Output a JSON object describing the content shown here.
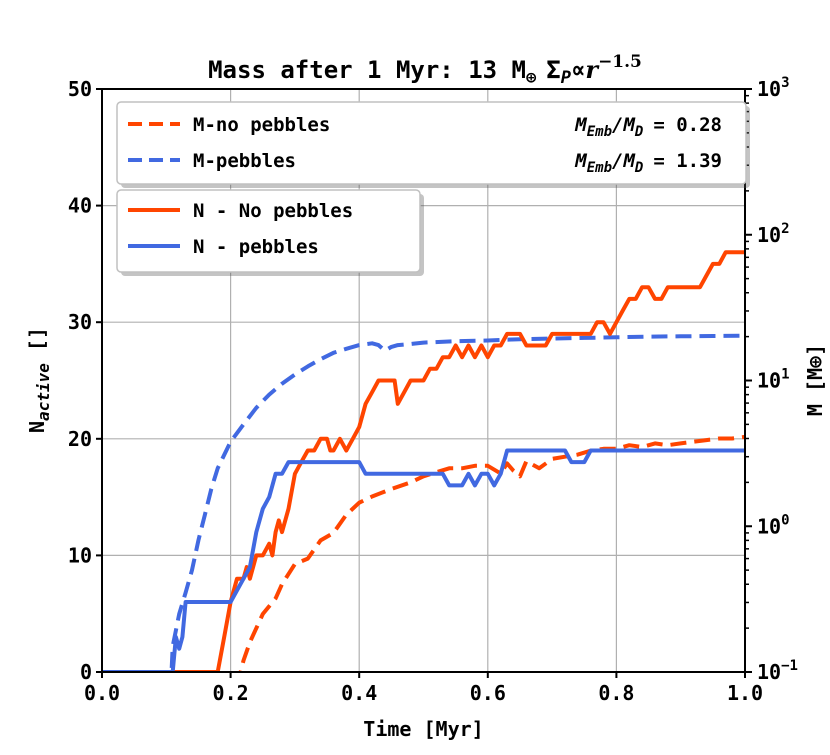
{
  "chart_data": {
    "type": "line",
    "title": "Mass after 1 Myr: 13 M⊕ ΣP ∝ r⁻¹·⁵",
    "title_parts": {
      "prefix": "Mass after 1 Myr: 13 M",
      "earth_symbol": "⊕",
      "sigma": "Σ",
      "sigma_sub": "P",
      "propto": "∝",
      "r": "r",
      "exponent": "−1.5"
    },
    "xlabel": "Time [Myr]",
    "ylabel_left": {
      "base": "N",
      "sub": "active",
      "unit": " []"
    },
    "ylabel_right": "M [M⊕]",
    "xlim": [
      0.0,
      1.0
    ],
    "ylim_left": [
      0,
      50
    ],
    "ylim_right_log10": [
      -1,
      3
    ],
    "x_ticks": [
      "0.0",
      "0.2",
      "0.4",
      "0.6",
      "0.8",
      "1.0"
    ],
    "y_ticks_left": [
      "0",
      "10",
      "20",
      "30",
      "40",
      "50"
    ],
    "y_ticks_right": [
      {
        "base": "10",
        "exp": "−1"
      },
      {
        "base": "10",
        "exp": "0"
      },
      {
        "base": "10",
        "exp": "1"
      },
      {
        "base": "10",
        "exp": "2"
      },
      {
        "base": "10",
        "exp": "3"
      }
    ],
    "grid": true,
    "legend_upper": [
      {
        "label": "M-no pebbles",
        "ratio_label": "M_Emb/M_D",
        "ratio_text": "= 0.28",
        "color": "#ff4500",
        "style": "dashed"
      },
      {
        "label": "M-pebbles",
        "ratio_label": "M_Emb/M_D",
        "ratio_text": "= 1.39",
        "color": "#4169e1",
        "style": "dashed"
      }
    ],
    "legend_lower": [
      {
        "label": "N - No pebbles",
        "color": "#ff4500",
        "style": "solid"
      },
      {
        "label": "N - pebbles",
        "color": "#4169e1",
        "style": "solid"
      }
    ],
    "ratio_symbols": {
      "M": "M",
      "Emb": "Emb",
      "slash": "/",
      "D": "D"
    },
    "series": [
      {
        "name": "N - No pebbles",
        "axis": "left",
        "color": "#ff4500",
        "style": "solid",
        "points": [
          [
            0,
            0
          ],
          [
            0.1,
            0
          ],
          [
            0.18,
            0
          ],
          [
            0.19,
            3
          ],
          [
            0.2,
            6
          ],
          [
            0.21,
            8
          ],
          [
            0.22,
            8
          ],
          [
            0.225,
            9
          ],
          [
            0.23,
            8
          ],
          [
            0.24,
            10
          ],
          [
            0.25,
            10
          ],
          [
            0.26,
            11
          ],
          [
            0.265,
            10
          ],
          [
            0.27,
            12
          ],
          [
            0.275,
            13
          ],
          [
            0.28,
            12
          ],
          [
            0.29,
            14
          ],
          [
            0.3,
            17
          ],
          [
            0.31,
            18
          ],
          [
            0.32,
            19
          ],
          [
            0.33,
            19
          ],
          [
            0.34,
            20
          ],
          [
            0.35,
            20
          ],
          [
            0.355,
            19
          ],
          [
            0.36,
            19
          ],
          [
            0.37,
            20
          ],
          [
            0.38,
            19
          ],
          [
            0.39,
            20
          ],
          [
            0.4,
            21
          ],
          [
            0.41,
            23
          ],
          [
            0.42,
            24
          ],
          [
            0.43,
            25
          ],
          [
            0.44,
            25
          ],
          [
            0.45,
            25
          ],
          [
            0.455,
            25
          ],
          [
            0.46,
            23
          ],
          [
            0.47,
            24
          ],
          [
            0.48,
            25
          ],
          [
            0.49,
            25
          ],
          [
            0.5,
            25
          ],
          [
            0.51,
            26
          ],
          [
            0.52,
            26
          ],
          [
            0.53,
            27
          ],
          [
            0.54,
            27
          ],
          [
            0.55,
            28
          ],
          [
            0.56,
            27
          ],
          [
            0.57,
            28
          ],
          [
            0.58,
            27
          ],
          [
            0.59,
            28
          ],
          [
            0.6,
            27
          ],
          [
            0.61,
            28
          ],
          [
            0.62,
            28
          ],
          [
            0.63,
            29
          ],
          [
            0.64,
            29
          ],
          [
            0.65,
            29
          ],
          [
            0.66,
            28
          ],
          [
            0.67,
            28
          ],
          [
            0.68,
            28
          ],
          [
            0.69,
            28
          ],
          [
            0.7,
            29
          ],
          [
            0.71,
            29
          ],
          [
            0.72,
            29
          ],
          [
            0.73,
            29
          ],
          [
            0.74,
            29
          ],
          [
            0.75,
            29
          ],
          [
            0.76,
            29
          ],
          [
            0.77,
            30
          ],
          [
            0.78,
            30
          ],
          [
            0.79,
            29
          ],
          [
            0.8,
            30
          ],
          [
            0.81,
            31
          ],
          [
            0.82,
            32
          ],
          [
            0.83,
            32
          ],
          [
            0.84,
            33
          ],
          [
            0.85,
            33
          ],
          [
            0.86,
            32
          ],
          [
            0.87,
            32
          ],
          [
            0.88,
            33
          ],
          [
            0.89,
            33
          ],
          [
            0.9,
            33
          ],
          [
            0.91,
            33
          ],
          [
            0.92,
            33
          ],
          [
            0.93,
            33
          ],
          [
            0.94,
            34
          ],
          [
            0.95,
            35
          ],
          [
            0.96,
            35
          ],
          [
            0.97,
            36
          ],
          [
            0.98,
            36
          ],
          [
            0.99,
            36
          ],
          [
            1.0,
            36
          ]
        ]
      },
      {
        "name": "N - pebbles",
        "axis": "left",
        "color": "#4169e1",
        "style": "solid",
        "points": [
          [
            0,
            0
          ],
          [
            0.1,
            0
          ],
          [
            0.11,
            0
          ],
          [
            0.115,
            3
          ],
          [
            0.12,
            2
          ],
          [
            0.125,
            3
          ],
          [
            0.13,
            6
          ],
          [
            0.14,
            6
          ],
          [
            0.15,
            6
          ],
          [
            0.16,
            6
          ],
          [
            0.17,
            6
          ],
          [
            0.18,
            6
          ],
          [
            0.19,
            6
          ],
          [
            0.2,
            6
          ],
          [
            0.21,
            7
          ],
          [
            0.22,
            8
          ],
          [
            0.23,
            9
          ],
          [
            0.24,
            12
          ],
          [
            0.25,
            14
          ],
          [
            0.26,
            15
          ],
          [
            0.27,
            17
          ],
          [
            0.28,
            17
          ],
          [
            0.29,
            18
          ],
          [
            0.3,
            18
          ],
          [
            0.31,
            18
          ],
          [
            0.32,
            18
          ],
          [
            0.33,
            18
          ],
          [
            0.34,
            18
          ],
          [
            0.35,
            18
          ],
          [
            0.36,
            18
          ],
          [
            0.37,
            18
          ],
          [
            0.38,
            18
          ],
          [
            0.39,
            18
          ],
          [
            0.4,
            18
          ],
          [
            0.41,
            17
          ],
          [
            0.42,
            17
          ],
          [
            0.45,
            17
          ],
          [
            0.5,
            17
          ],
          [
            0.53,
            17
          ],
          [
            0.54,
            16
          ],
          [
            0.55,
            16
          ],
          [
            0.56,
            16
          ],
          [
            0.57,
            17
          ],
          [
            0.58,
            16
          ],
          [
            0.59,
            17
          ],
          [
            0.6,
            17
          ],
          [
            0.61,
            16
          ],
          [
            0.62,
            17
          ],
          [
            0.63,
            19
          ],
          [
            0.65,
            19
          ],
          [
            0.7,
            19
          ],
          [
            0.72,
            19
          ],
          [
            0.73,
            18
          ],
          [
            0.74,
            18
          ],
          [
            0.75,
            18
          ],
          [
            0.76,
            19
          ],
          [
            0.77,
            19
          ],
          [
            0.78,
            19
          ],
          [
            0.8,
            19
          ],
          [
            0.85,
            19
          ],
          [
            0.9,
            19
          ],
          [
            0.95,
            19
          ],
          [
            1.0,
            19
          ]
        ]
      },
      {
        "name": "M-no pebbles",
        "axis": "right",
        "color": "#ff4500",
        "style": "dashed",
        "points": [
          [
            0.21,
            0.08
          ],
          [
            0.22,
            0.12
          ],
          [
            0.23,
            0.16
          ],
          [
            0.25,
            0.25
          ],
          [
            0.27,
            0.32
          ],
          [
            0.28,
            0.4
          ],
          [
            0.3,
            0.55
          ],
          [
            0.32,
            0.6
          ],
          [
            0.34,
            0.8
          ],
          [
            0.36,
            0.9
          ],
          [
            0.38,
            1.2
          ],
          [
            0.4,
            1.45
          ],
          [
            0.42,
            1.6
          ],
          [
            0.45,
            1.8
          ],
          [
            0.48,
            2.0
          ],
          [
            0.5,
            2.2
          ],
          [
            0.52,
            2.35
          ],
          [
            0.54,
            2.5
          ],
          [
            0.56,
            2.5
          ],
          [
            0.58,
            2.6
          ],
          [
            0.6,
            2.6
          ],
          [
            0.62,
            2.3
          ],
          [
            0.63,
            2.7
          ],
          [
            0.64,
            2.4
          ],
          [
            0.65,
            2.2
          ],
          [
            0.66,
            2.8
          ],
          [
            0.68,
            2.5
          ],
          [
            0.7,
            2.9
          ],
          [
            0.72,
            3.0
          ],
          [
            0.74,
            3.1
          ],
          [
            0.76,
            3.3
          ],
          [
            0.78,
            3.4
          ],
          [
            0.8,
            3.4
          ],
          [
            0.82,
            3.6
          ],
          [
            0.84,
            3.5
          ],
          [
            0.86,
            3.7
          ],
          [
            0.88,
            3.6
          ],
          [
            0.9,
            3.7
          ],
          [
            0.92,
            3.8
          ],
          [
            0.94,
            3.9
          ],
          [
            0.96,
            4.0
          ],
          [
            0.98,
            4.0
          ],
          [
            1.0,
            4.1
          ]
        ]
      },
      {
        "name": "M-pebbles",
        "axis": "right",
        "color": "#4169e1",
        "style": "dashed",
        "points": [
          [
            0.105,
            0.05
          ],
          [
            0.11,
            0.15
          ],
          [
            0.12,
            0.25
          ],
          [
            0.13,
            0.35
          ],
          [
            0.14,
            0.5
          ],
          [
            0.15,
            0.8
          ],
          [
            0.16,
            1.2
          ],
          [
            0.17,
            1.8
          ],
          [
            0.18,
            2.5
          ],
          [
            0.2,
            3.8
          ],
          [
            0.22,
            5.0
          ],
          [
            0.24,
            6.5
          ],
          [
            0.26,
            8.0
          ],
          [
            0.28,
            9.5
          ],
          [
            0.3,
            11.0
          ],
          [
            0.32,
            12.5
          ],
          [
            0.34,
            14.0
          ],
          [
            0.36,
            15.5
          ],
          [
            0.38,
            16.5
          ],
          [
            0.4,
            17.5
          ],
          [
            0.42,
            18.0
          ],
          [
            0.43,
            17.5
          ],
          [
            0.44,
            16.0
          ],
          [
            0.45,
            17.0
          ],
          [
            0.46,
            17.5
          ],
          [
            0.48,
            17.8
          ],
          [
            0.5,
            18.2
          ],
          [
            0.55,
            18.6
          ],
          [
            0.6,
            18.8
          ],
          [
            0.65,
            19.2
          ],
          [
            0.7,
            19.4
          ],
          [
            0.75,
            19.6
          ],
          [
            0.8,
            19.8
          ],
          [
            0.85,
            20.0
          ],
          [
            0.9,
            20.1
          ],
          [
            0.95,
            20.2
          ],
          [
            1.0,
            20.3
          ]
        ]
      }
    ]
  }
}
